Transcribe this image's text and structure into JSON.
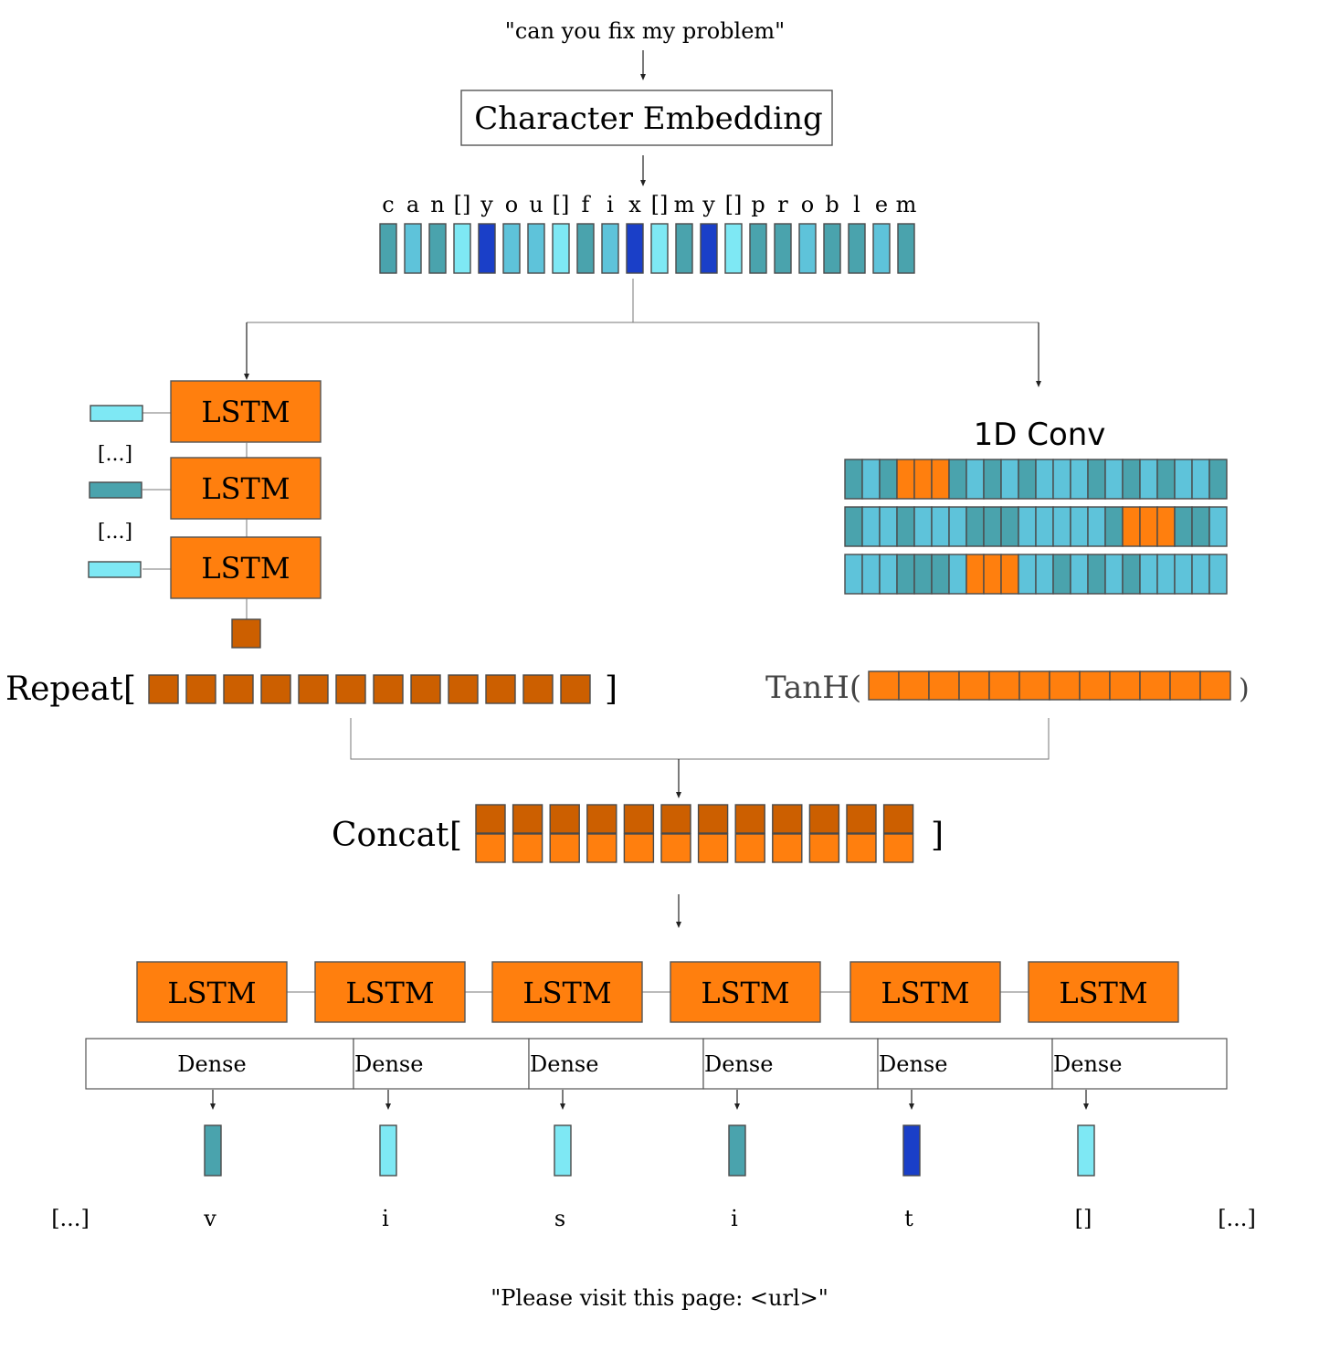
{
  "input_text": "\"can you fix my problem\"",
  "output_text": "\"Please visit this page: <url>\"",
  "character_embedding": {
    "label": "Character Embedding",
    "chars": [
      "c",
      "a",
      "n",
      "[]",
      "y",
      "o",
      "u",
      "[]",
      "f",
      "i",
      "x",
      "[]",
      "m",
      "y",
      "[]",
      "p",
      "r",
      "o",
      "b",
      "l",
      "e",
      "m"
    ],
    "colors": [
      "teal",
      "mid",
      "teal",
      "light",
      "dark",
      "mid",
      "mid",
      "light",
      "teal",
      "mid",
      "dark",
      "light",
      "teal",
      "dark",
      "light",
      "teal",
      "teal",
      "mid",
      "teal",
      "teal",
      "mid",
      "teal"
    ]
  },
  "encoder": {
    "lstm_labels": [
      "LSTM",
      "LSTM",
      "LSTM"
    ],
    "ellipsis": "[...]",
    "input_colors": [
      "light",
      "teal",
      "light"
    ],
    "repeat_label": "Repeat",
    "bracket_open": "[",
    "bracket_close": "]",
    "repeat_count": 12
  },
  "conv": {
    "label": "1D  Conv",
    "rows": [
      [
        "teal",
        "mid",
        "teal",
        "orange",
        "orange",
        "orange",
        "teal",
        "mid",
        "teal",
        "mid",
        "teal",
        "mid",
        "mid",
        "mid",
        "teal",
        "mid",
        "teal",
        "mid",
        "teal",
        "mid",
        "mid",
        "teal"
      ],
      [
        "teal",
        "mid",
        "mid",
        "teal",
        "mid",
        "mid",
        "mid",
        "teal",
        "teal",
        "teal",
        "mid",
        "mid",
        "mid",
        "mid",
        "mid",
        "teal",
        "orange",
        "orange",
        "orange",
        "teal",
        "teal",
        "mid"
      ],
      [
        "mid",
        "mid",
        "mid",
        "teal",
        "teal",
        "teal",
        "mid",
        "orange",
        "orange",
        "orange",
        "mid",
        "mid",
        "teal",
        "mid",
        "teal",
        "mid",
        "teal",
        "mid",
        "mid",
        "mid",
        "mid",
        "mid"
      ]
    ],
    "tanh_open": "TanH(",
    "tanh_close": ")",
    "tanh_count": 12
  },
  "concat": {
    "label": "Concat",
    "bracket_open": "[",
    "bracket_close": "]",
    "count": 12
  },
  "decoder": {
    "lstm_labels": [
      "LSTM",
      "LSTM",
      "LSTM",
      "LSTM",
      "LSTM",
      "LSTM"
    ],
    "dense_labels": [
      "Dense",
      "Dense",
      "Dense",
      "Dense",
      "Dense",
      "Dense"
    ],
    "output_colors": [
      "teal",
      "light",
      "light",
      "teal",
      "dark",
      "light"
    ],
    "output_chars": [
      "v",
      "i",
      "s",
      "i",
      "t",
      "[]"
    ],
    "ellipsis_left": "[...]",
    "ellipsis_right": "[...]"
  },
  "colors": {
    "teal": "#4aa3ad",
    "mid": "#5ec3da",
    "light": "#7ee8f4",
    "dark": "#1a3fc8",
    "orange": "#ff7f0e",
    "dark_orange": "#cc5f00",
    "lstm_fill": "#ff7f0e",
    "tanh_text": "#444444"
  }
}
